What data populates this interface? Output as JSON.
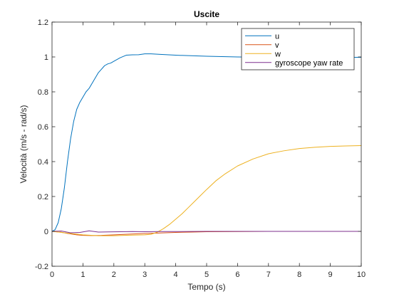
{
  "chart_data": {
    "type": "line",
    "title": "Uscite",
    "xlabel": "Tempo (s)",
    "ylabel": "Velocità (m/s - rad/s)",
    "xlim": [
      0,
      10
    ],
    "ylim": [
      -0.2,
      1.2
    ],
    "xticks": [
      0,
      1,
      2,
      3,
      4,
      5,
      6,
      7,
      8,
      9,
      10
    ],
    "yticks": [
      -0.2,
      0,
      0.2,
      0.4,
      0.6,
      0.8,
      1,
      1.2
    ],
    "grid": false,
    "legend_position": "top-right",
    "series": [
      {
        "name": "u",
        "color": "#0072BD",
        "x": [
          0,
          0.1,
          0.2,
          0.3,
          0.4,
          0.5,
          0.6,
          0.7,
          0.8,
          0.9,
          1.0,
          1.1,
          1.2,
          1.3,
          1.4,
          1.5,
          1.6,
          1.7,
          1.8,
          1.9,
          2.0,
          2.2,
          2.4,
          2.6,
          2.8,
          3.0,
          3.2,
          3.5,
          4.0,
          4.5,
          5.0,
          5.5,
          6.0,
          6.5,
          7.0,
          7.5,
          8.0,
          8.5,
          9.0,
          9.5,
          10.0
        ],
        "y": [
          0,
          0.01,
          0.05,
          0.13,
          0.25,
          0.4,
          0.53,
          0.63,
          0.7,
          0.74,
          0.77,
          0.8,
          0.82,
          0.85,
          0.88,
          0.91,
          0.93,
          0.95,
          0.96,
          0.965,
          0.975,
          0.995,
          1.01,
          1.012,
          1.013,
          1.018,
          1.018,
          1.015,
          1.01,
          1.007,
          1.004,
          1.002,
          1.0,
          0.999,
          0.998,
          0.998,
          0.998,
          0.998,
          0.998,
          0.998,
          0.998
        ]
      },
      {
        "name": "v",
        "color": "#D95319",
        "x": [
          0,
          0.3,
          0.5,
          0.8,
          1.0,
          1.3,
          1.6,
          2.0,
          2.5,
          3.0,
          3.5,
          4.0,
          4.5,
          5.0,
          6.0,
          7.0,
          8.0,
          9.0,
          10.0
        ],
        "y": [
          0,
          -0.005,
          -0.012,
          -0.02,
          -0.023,
          -0.024,
          -0.023,
          -0.02,
          -0.016,
          -0.012,
          -0.009,
          -0.006,
          -0.004,
          -0.002,
          -0.001,
          0,
          0,
          0,
          0
        ]
      },
      {
        "name": "w",
        "color": "#EDB120",
        "x": [
          0,
          0.5,
          1.0,
          1.5,
          2.0,
          2.5,
          3.0,
          3.2,
          3.4,
          3.6,
          3.8,
          4.0,
          4.2,
          4.4,
          4.6,
          4.8,
          5.0,
          5.3,
          5.6,
          6.0,
          6.5,
          7.0,
          7.5,
          8.0,
          8.5,
          9.0,
          9.5,
          10.0
        ],
        "y": [
          0,
          -0.01,
          -0.02,
          -0.025,
          -0.025,
          -0.022,
          -0.02,
          -0.017,
          -0.005,
          0.015,
          0.04,
          0.07,
          0.1,
          0.135,
          0.17,
          0.205,
          0.24,
          0.29,
          0.33,
          0.375,
          0.415,
          0.445,
          0.462,
          0.475,
          0.482,
          0.487,
          0.49,
          0.492
        ]
      },
      {
        "name": "gyroscope yaw rate",
        "color": "#7E2F8E",
        "x": [
          0,
          0.3,
          0.6,
          0.9,
          1.2,
          1.5,
          1.8,
          2.2,
          2.6,
          3.0,
          3.5,
          4.0,
          5.0,
          6.0,
          7.0,
          8.0,
          9.0,
          10.0
        ],
        "y": [
          0,
          0.002,
          -0.008,
          -0.006,
          0.003,
          -0.004,
          -0.003,
          -0.002,
          -0.001,
          -0.002,
          -0.001,
          -0.001,
          0,
          0,
          0,
          0,
          0,
          0
        ]
      }
    ]
  }
}
